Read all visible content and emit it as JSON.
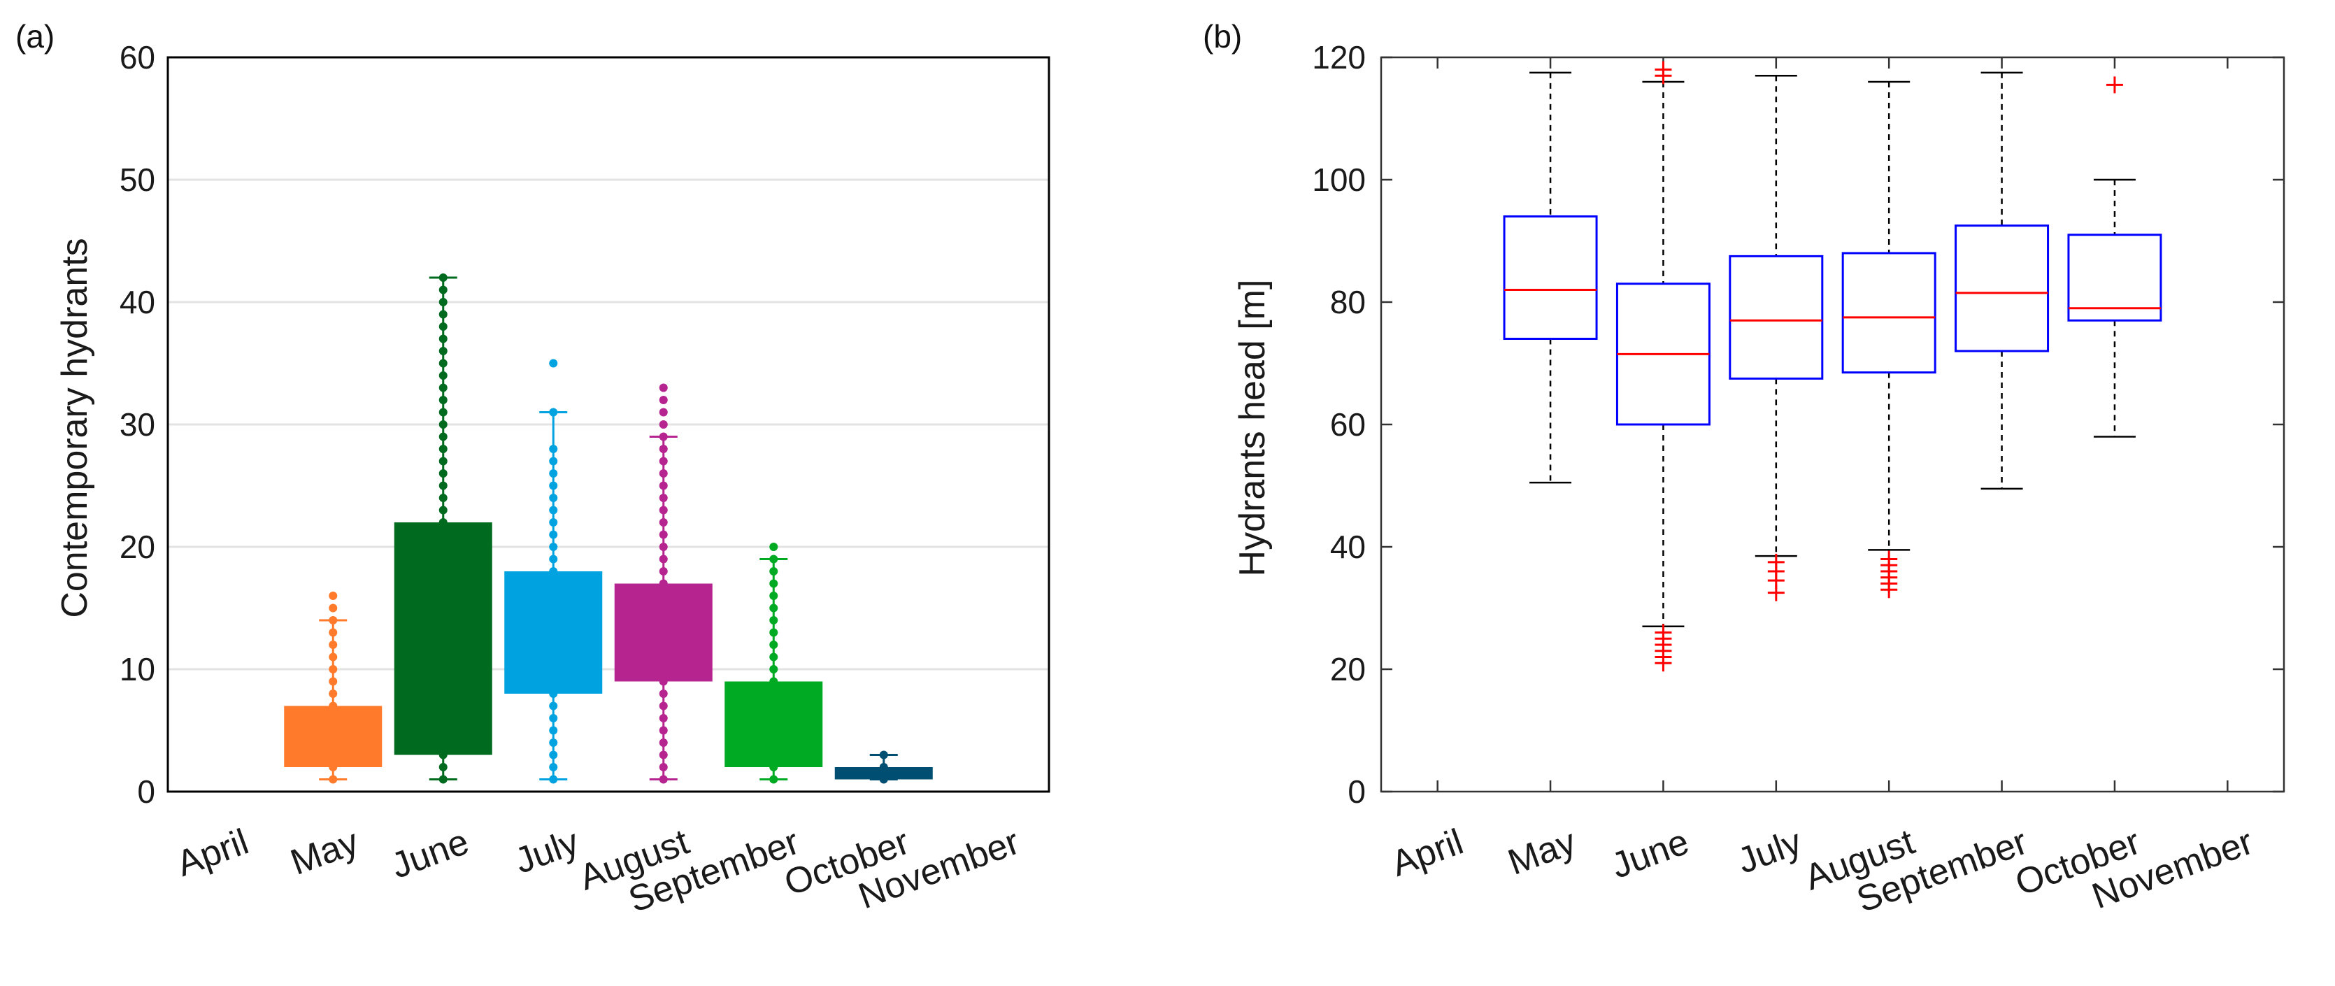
{
  "chart_data": [
    {
      "panel": "(a)",
      "type": "box",
      "title": "",
      "xlabel": "",
      "ylabel": "Contemporary hydrants",
      "ylim": [
        0,
        60
      ],
      "yticks": [
        0,
        10,
        20,
        30,
        40,
        50,
        60
      ],
      "grid": "horizontal",
      "categories": [
        "April",
        "May",
        "June",
        "July",
        "August",
        "September",
        "October",
        "November"
      ],
      "boxes": [
        {
          "category": "April",
          "present": false
        },
        {
          "category": "May",
          "color": "#ff7a2b",
          "whisker_low": 1,
          "q1": 2,
          "q3": 7,
          "whisker_high": 14,
          "points": [
            1,
            2,
            3,
            4,
            5,
            6,
            7,
            8,
            9,
            10,
            11,
            12,
            13,
            14,
            15,
            16
          ]
        },
        {
          "category": "June",
          "color": "#006b1e",
          "whisker_low": 1,
          "q1": 3,
          "q3": 22,
          "whisker_high": 42,
          "points": [
            1,
            2,
            3,
            4,
            5,
            6,
            7,
            8,
            9,
            10,
            11,
            12,
            13,
            14,
            15,
            16,
            17,
            18,
            19,
            20,
            21,
            22,
            23,
            24,
            25,
            26,
            27,
            28,
            29,
            30,
            31,
            32,
            33,
            34,
            35,
            36,
            37,
            38,
            39,
            40,
            41,
            42
          ]
        },
        {
          "category": "July",
          "color": "#00a3df",
          "whisker_low": 1,
          "q1": 8,
          "q3": 18,
          "whisker_high": 31,
          "points": [
            1,
            2,
            3,
            4,
            5,
            6,
            7,
            8,
            9,
            10,
            11,
            12,
            13,
            14,
            15,
            16,
            17,
            18,
            19,
            20,
            21,
            22,
            23,
            24,
            25,
            26,
            27,
            28,
            31,
            35
          ]
        },
        {
          "category": "August",
          "color": "#b5248f",
          "whisker_low": 1,
          "q1": 9,
          "q3": 17,
          "whisker_high": 29,
          "points": [
            1,
            2,
            3,
            4,
            5,
            6,
            7,
            8,
            9,
            10,
            11,
            12,
            13,
            14,
            15,
            16,
            17,
            18,
            19,
            20,
            21,
            22,
            23,
            24,
            25,
            26,
            27,
            28,
            29,
            30,
            31,
            32,
            33
          ]
        },
        {
          "category": "September",
          "color": "#00aa22",
          "whisker_low": 1,
          "q1": 2,
          "q3": 9,
          "whisker_high": 19,
          "points": [
            1,
            2,
            3,
            4,
            5,
            6,
            7,
            8,
            9,
            10,
            11,
            12,
            13,
            14,
            15,
            16,
            17,
            18,
            19,
            20
          ]
        },
        {
          "category": "October",
          "color": "#004f72",
          "whisker_low": 1,
          "q1": 1,
          "q3": 2,
          "whisker_high": 3,
          "points": [
            1,
            2,
            3
          ]
        },
        {
          "category": "November",
          "present": false
        }
      ]
    },
    {
      "panel": "(b)",
      "type": "box",
      "title": "",
      "xlabel": "",
      "ylabel": "Hydrants head [m]",
      "ylim": [
        0,
        120
      ],
      "yticks": [
        0,
        20,
        40,
        60,
        80,
        100,
        120
      ],
      "grid": "none",
      "box_color": "#0000ff",
      "median_color": "#ff0000",
      "whisker_color": "#000000",
      "outlier_color": "#ff0000",
      "categories": [
        "April",
        "May",
        "June",
        "July",
        "August",
        "September",
        "October",
        "November"
      ],
      "boxes": [
        {
          "category": "April",
          "present": false
        },
        {
          "category": "May",
          "whisker_low": 50.5,
          "q1": 74,
          "median": 82,
          "q3": 94,
          "whisker_high": 117.5,
          "outliers": []
        },
        {
          "category": "June",
          "whisker_low": 27,
          "q1": 60,
          "median": 71.5,
          "q3": 83,
          "whisker_high": 116,
          "outliers": [
            21,
            22,
            23,
            24,
            25,
            26,
            117,
            118
          ]
        },
        {
          "category": "July",
          "whisker_low": 38.5,
          "q1": 67.5,
          "median": 77,
          "q3": 87.5,
          "whisker_high": 117,
          "outliers": [
            32.5,
            34.5,
            36,
            37.5
          ]
        },
        {
          "category": "August",
          "whisker_low": 39.5,
          "q1": 68.5,
          "median": 77.5,
          "q3": 88,
          "whisker_high": 116,
          "outliers": [
            33,
            34,
            35,
            36,
            37,
            38
          ]
        },
        {
          "category": "September",
          "whisker_low": 49.5,
          "q1": 72,
          "median": 81.5,
          "q3": 92.5,
          "whisker_high": 117.5,
          "outliers": []
        },
        {
          "category": "October",
          "whisker_low": 58,
          "q1": 77,
          "median": 79,
          "q3": 91,
          "whisker_high": 100,
          "outliers": [
            115.5
          ]
        },
        {
          "category": "November",
          "present": false
        }
      ]
    }
  ]
}
